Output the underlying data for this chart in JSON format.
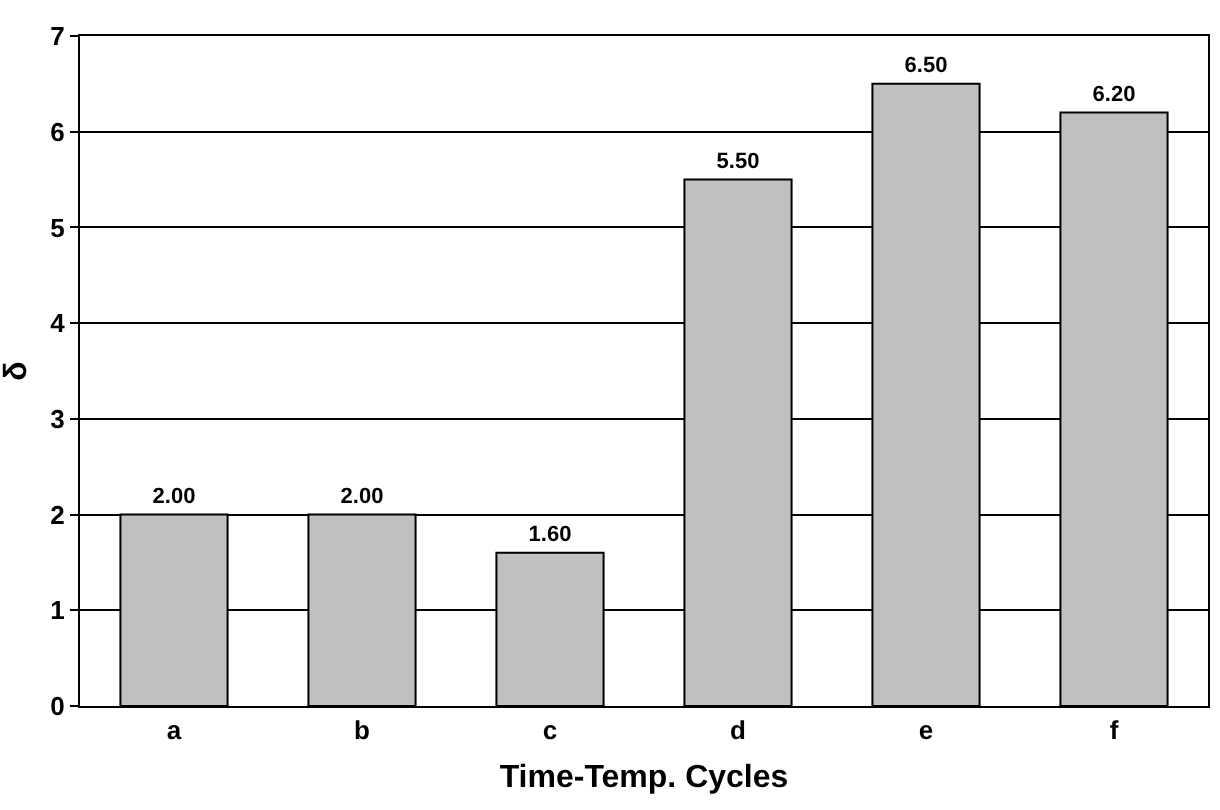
{
  "chart_data": {
    "type": "bar",
    "xlabel": "Time-Temp. Cycles",
    "ylabel": "δ",
    "categories": [
      "a",
      "b",
      "c",
      "d",
      "e",
      "f"
    ],
    "values": [
      2.0,
      2.0,
      1.6,
      5.5,
      6.5,
      6.2
    ],
    "value_labels": [
      "2.00",
      "2.00",
      "1.60",
      "5.50",
      "6.50",
      "6.20"
    ],
    "color": "#c0c0c0",
    "ylim": [
      0,
      7
    ],
    "yticks": [
      0,
      1,
      2,
      3,
      4,
      5,
      6,
      7
    ],
    "grid": "y",
    "legend": false
  }
}
